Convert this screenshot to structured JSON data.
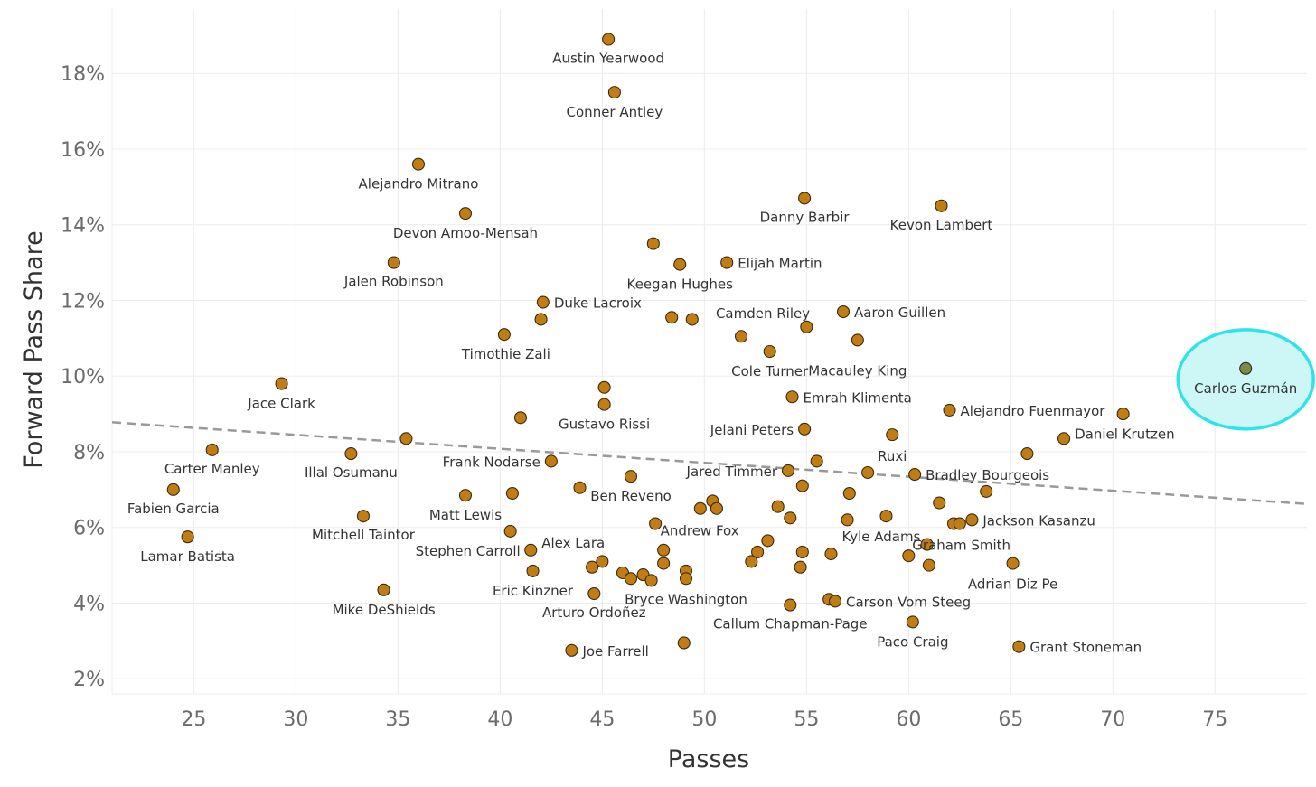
{
  "chart_data": {
    "type": "scatter",
    "xlabel": "Passes",
    "ylabel": "Forward Pass Share",
    "xlim": [
      21,
      79.5
    ],
    "ylim": [
      1.6,
      19.7
    ],
    "xticks": [
      25,
      30,
      35,
      40,
      45,
      50,
      55,
      60,
      65,
      70,
      75
    ],
    "yticks": [
      2,
      4,
      6,
      8,
      10,
      12,
      14,
      16,
      18
    ],
    "ytick_suffix": "%",
    "grid": true,
    "point_color": "#c17d14",
    "highlight_point_color": "#7a8a4a",
    "highlight_ring_color": "#2fe3ea",
    "highlight_fill_color": "#cdf7f7",
    "trend_color": "#999999",
    "trend_line": {
      "x": [
        21,
        79.5
      ],
      "y": [
        8.78,
        6.62
      ]
    },
    "points": [
      {
        "x": 45.3,
        "y": 18.9,
        "label": "Austin Yearwood"
      },
      {
        "x": 45.6,
        "y": 17.5,
        "label": "Conner Antley"
      },
      {
        "x": 36.0,
        "y": 15.6,
        "label": "Alejandro Mitrano"
      },
      {
        "x": 54.9,
        "y": 14.7,
        "label": "Danny Barbir"
      },
      {
        "x": 61.6,
        "y": 14.5,
        "label": "Kevon Lambert"
      },
      {
        "x": 38.3,
        "y": 14.3,
        "label": "Devon Amoo-Mensah"
      },
      {
        "x": 47.5,
        "y": 13.5,
        "label": ""
      },
      {
        "x": 51.1,
        "y": 13.0,
        "label": "Elijah Martin"
      },
      {
        "x": 34.8,
        "y": 13.0,
        "label": "Jalen Robinson"
      },
      {
        "x": 48.8,
        "y": 12.95,
        "label": "Keegan Hughes"
      },
      {
        "x": 42.1,
        "y": 11.95,
        "label": "Duke Lacroix"
      },
      {
        "x": 56.8,
        "y": 11.7,
        "label": "Aaron Guillen"
      },
      {
        "x": 48.4,
        "y": 11.55,
        "label": ""
      },
      {
        "x": 42.0,
        "y": 11.5,
        "label": ""
      },
      {
        "x": 49.4,
        "y": 11.5,
        "label": ""
      },
      {
        "x": 55.0,
        "y": 11.3,
        "label": ""
      },
      {
        "x": 51.8,
        "y": 11.05,
        "label": "Camden Riley"
      },
      {
        "x": 40.2,
        "y": 11.1,
        "label": "Timothie Zali"
      },
      {
        "x": 57.5,
        "y": 10.95,
        "label": "Macauley King"
      },
      {
        "x": 53.2,
        "y": 10.65,
        "label": "Cole Turner"
      },
      {
        "x": 76.5,
        "y": 10.2,
        "label": "Carlos Guzmán",
        "highlight": true
      },
      {
        "x": 29.3,
        "y": 9.8,
        "label": "Jace Clark"
      },
      {
        "x": 45.1,
        "y": 9.7,
        "label": ""
      },
      {
        "x": 54.3,
        "y": 9.45,
        "label": "Emrah Klimenta"
      },
      {
        "x": 45.1,
        "y": 9.25,
        "label": "Gustavo Rissi"
      },
      {
        "x": 62.0,
        "y": 9.1,
        "label": "Alejandro Fuenmayor"
      },
      {
        "x": 70.5,
        "y": 9.0,
        "label": ""
      },
      {
        "x": 41.0,
        "y": 8.9,
        "label": ""
      },
      {
        "x": 54.9,
        "y": 8.6,
        "label": "Jelani Peters"
      },
      {
        "x": 59.2,
        "y": 8.45,
        "label": "Ruxi"
      },
      {
        "x": 67.6,
        "y": 8.35,
        "label": "Daniel Krutzen"
      },
      {
        "x": 35.4,
        "y": 8.35,
        "label": ""
      },
      {
        "x": 25.9,
        "y": 8.05,
        "label": "Carter Manley"
      },
      {
        "x": 65.8,
        "y": 7.95,
        "label": ""
      },
      {
        "x": 32.7,
        "y": 7.95,
        "label": "Illal Osumanu"
      },
      {
        "x": 55.5,
        "y": 7.75,
        "label": ""
      },
      {
        "x": 42.5,
        "y": 7.75,
        "label": "Frank Nodarse"
      },
      {
        "x": 54.1,
        "y": 7.5,
        "label": "Jared Timmer"
      },
      {
        "x": 58.0,
        "y": 7.45,
        "label": ""
      },
      {
        "x": 60.3,
        "y": 7.4,
        "label": "Bradley Bourgeois"
      },
      {
        "x": 46.4,
        "y": 7.35,
        "label": "Ben Reveno"
      },
      {
        "x": 54.8,
        "y": 7.1,
        "label": ""
      },
      {
        "x": 43.9,
        "y": 7.05,
        "label": ""
      },
      {
        "x": 24.0,
        "y": 7.0,
        "label": "Fabien Garcia"
      },
      {
        "x": 57.1,
        "y": 6.9,
        "label": ""
      },
      {
        "x": 63.8,
        "y": 6.95,
        "label": ""
      },
      {
        "x": 40.6,
        "y": 6.9,
        "label": ""
      },
      {
        "x": 38.3,
        "y": 6.85,
        "label": "Matt Lewis"
      },
      {
        "x": 50.4,
        "y": 6.7,
        "label": ""
      },
      {
        "x": 61.5,
        "y": 6.65,
        "label": ""
      },
      {
        "x": 49.8,
        "y": 6.5,
        "label": ""
      },
      {
        "x": 50.6,
        "y": 6.5,
        "label": ""
      },
      {
        "x": 53.6,
        "y": 6.55,
        "label": ""
      },
      {
        "x": 33.3,
        "y": 6.3,
        "label": "Mitchell Taintor"
      },
      {
        "x": 58.9,
        "y": 6.3,
        "label": ""
      },
      {
        "x": 54.2,
        "y": 6.25,
        "label": ""
      },
      {
        "x": 57.0,
        "y": 6.2,
        "label": ""
      },
      {
        "x": 63.1,
        "y": 6.2,
        "label": "Jackson Kasanzu"
      },
      {
        "x": 62.2,
        "y": 6.1,
        "label": ""
      },
      {
        "x": 62.5,
        "y": 6.1,
        "label": ""
      },
      {
        "x": 47.6,
        "y": 6.1,
        "label": "Andrew Fox"
      },
      {
        "x": 40.5,
        "y": 5.9,
        "label": "Stephen Carroll"
      },
      {
        "x": 24.7,
        "y": 5.75,
        "label": "Lamar Batista"
      },
      {
        "x": 53.1,
        "y": 5.65,
        "label": ""
      },
      {
        "x": 60.9,
        "y": 5.55,
        "label": "Graham Smith"
      },
      {
        "x": 48.0,
        "y": 5.4,
        "label": ""
      },
      {
        "x": 41.5,
        "y": 5.4,
        "label": "Alex Lara"
      },
      {
        "x": 52.6,
        "y": 5.35,
        "label": ""
      },
      {
        "x": 54.8,
        "y": 5.35,
        "label": ""
      },
      {
        "x": 56.2,
        "y": 5.3,
        "label": "Kyle Adams"
      },
      {
        "x": 60.0,
        "y": 5.25,
        "label": ""
      },
      {
        "x": 45.0,
        "y": 5.1,
        "label": ""
      },
      {
        "x": 52.3,
        "y": 5.1,
        "label": ""
      },
      {
        "x": 48.0,
        "y": 5.05,
        "label": ""
      },
      {
        "x": 65.1,
        "y": 5.05,
        "label": "Adrian Diz Pe"
      },
      {
        "x": 61.0,
        "y": 5.0,
        "label": ""
      },
      {
        "x": 44.5,
        "y": 4.95,
        "label": ""
      },
      {
        "x": 54.7,
        "y": 4.95,
        "label": ""
      },
      {
        "x": 49.1,
        "y": 4.85,
        "label": ""
      },
      {
        "x": 41.6,
        "y": 4.85,
        "label": "Eric Kinzner"
      },
      {
        "x": 46.0,
        "y": 4.8,
        "label": ""
      },
      {
        "x": 47.0,
        "y": 4.75,
        "label": ""
      },
      {
        "x": 46.4,
        "y": 4.65,
        "label": ""
      },
      {
        "x": 47.4,
        "y": 4.6,
        "label": ""
      },
      {
        "x": 49.1,
        "y": 4.65,
        "label": "Bryce Washington"
      },
      {
        "x": 34.3,
        "y": 4.35,
        "label": "Mike DeShields"
      },
      {
        "x": 44.6,
        "y": 4.25,
        "label": "Arturo Ordoñez"
      },
      {
        "x": 56.1,
        "y": 4.1,
        "label": ""
      },
      {
        "x": 56.4,
        "y": 4.05,
        "label": "Carson Vom Steeg"
      },
      {
        "x": 54.2,
        "y": 3.95,
        "label": "Callum Chapman-Page"
      },
      {
        "x": 60.2,
        "y": 3.5,
        "label": "Paco Craig"
      },
      {
        "x": 49.0,
        "y": 2.95,
        "label": ""
      },
      {
        "x": 65.4,
        "y": 2.85,
        "label": "Grant Stoneman"
      },
      {
        "x": 43.5,
        "y": 2.75,
        "label": "Joe Farrell"
      }
    ]
  }
}
